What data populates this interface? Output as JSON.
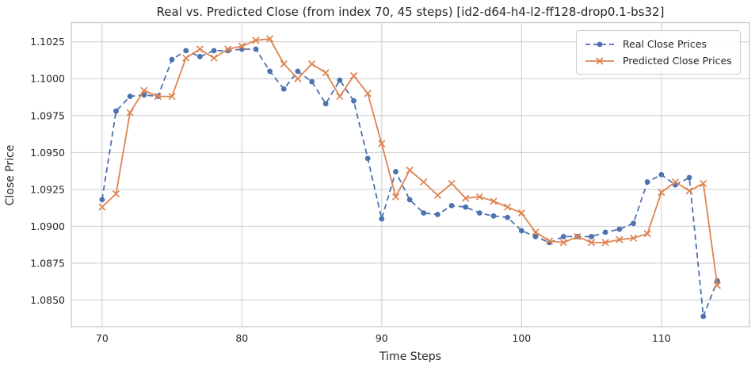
{
  "figure": {
    "title": "Real vs. Predicted Close (from index 70, 45 steps) [id2-d64-h4-l2-ff128-drop0.1-bs32]",
    "xlabel": "Time Steps",
    "ylabel": "Close Price"
  },
  "legend": {
    "position": "upper right",
    "entries": [
      {
        "label": "Real Close Prices",
        "marker": "circle",
        "line_style": "dashed",
        "color": "#4C72B0"
      },
      {
        "label": "Predicted Close Prices",
        "marker": "x",
        "line_style": "solid",
        "color": "#DD8452"
      }
    ]
  },
  "style": {
    "background": "#ffffff",
    "grid_color": "#cccccc",
    "spine_color": "#c9c9c9",
    "text_color": "#262626",
    "real_color": "#4C72B0",
    "predicted_color": "#DD8452"
  },
  "chart_data": {
    "type": "line",
    "title": "Real vs. Predicted Close (from index 70, 45 steps) [id2-d64-h4-l2-ff128-drop0.1-bs32]",
    "xlabel": "Time Steps",
    "ylabel": "Close Price",
    "grid": true,
    "legend_position": "upper right",
    "x": [
      70,
      71,
      72,
      73,
      74,
      75,
      76,
      77,
      78,
      79,
      80,
      81,
      82,
      83,
      84,
      85,
      86,
      87,
      88,
      89,
      90,
      91,
      92,
      93,
      94,
      95,
      96,
      97,
      98,
      99,
      100,
      101,
      102,
      103,
      104,
      105,
      106,
      107,
      108,
      109,
      110,
      111,
      112,
      113,
      114
    ],
    "series": [
      {
        "name": "Real Close Prices",
        "color": "#4C72B0",
        "line_style": "dashed",
        "marker": "circle",
        "values": [
          1.0918,
          1.0978,
          1.0988,
          1.0989,
          1.0988,
          1.1013,
          1.1019,
          1.1015,
          1.1019,
          1.1019,
          1.102,
          1.102,
          1.1005,
          1.0993,
          1.1005,
          1.0998,
          1.0983,
          1.0999,
          1.0985,
          1.0946,
          1.0905,
          1.0937,
          1.0918,
          1.0909,
          1.0908,
          1.0914,
          1.0913,
          1.0909,
          1.0907,
          1.0906,
          1.0897,
          1.0893,
          1.0889,
          1.0893,
          1.0893,
          1.0893,
          1.0896,
          1.0898,
          1.0902,
          1.093,
          1.0935,
          1.0928,
          1.0933,
          1.0839,
          1.0863
        ]
      },
      {
        "name": "Predicted Close Prices",
        "color": "#DD8452",
        "line_style": "solid",
        "marker": "x",
        "values": [
          1.0913,
          1.0922,
          1.0977,
          1.0992,
          1.0988,
          1.0988,
          1.1014,
          1.102,
          1.1014,
          1.102,
          1.1022,
          1.1026,
          1.1027,
          1.101,
          1.1,
          1.101,
          1.1004,
          1.0988,
          1.1002,
          1.099,
          1.0956,
          1.092,
          1.0938,
          1.093,
          1.0921,
          1.0929,
          1.0919,
          1.092,
          1.0917,
          1.0913,
          1.0909,
          1.0896,
          1.089,
          1.0889,
          1.0893,
          1.0889,
          1.0889,
          1.0891,
          1.0892,
          1.0895,
          1.0923,
          1.093,
          1.0924,
          1.0929,
          1.086
        ]
      }
    ],
    "x_ticks": [
      70,
      80,
      90,
      100,
      110
    ],
    "y_ticks": [
      "1.0850",
      "1.0875",
      "1.0900",
      "1.0925",
      "1.0950",
      "1.0975",
      "1.1000",
      "1.1025"
    ],
    "xlim": [
      67.8,
      116.3
    ],
    "ylim": [
      1.0832,
      1.1038
    ]
  }
}
